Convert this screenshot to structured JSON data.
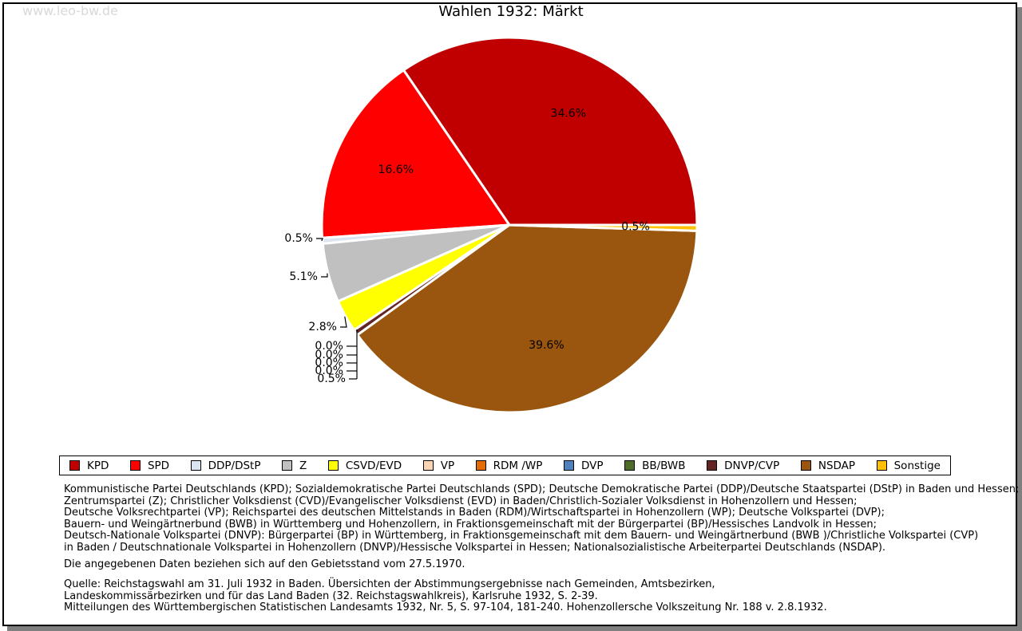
{
  "page": {
    "watermark": "www.leo-bw.de",
    "title": "Wahlen 1932: Märkt"
  },
  "chart_data": {
    "type": "pie",
    "title": "Wahlen 1932: Märkt",
    "legend_position": "bottom",
    "start_angle_deg": 0,
    "direction": "counterclockwise",
    "series": [
      {
        "name": "KPD",
        "value": 34.6,
        "color": "#c00000"
      },
      {
        "name": "SPD",
        "value": 16.6,
        "color": "#ff0000"
      },
      {
        "name": "DDP/DStP",
        "value": 0.5,
        "color": "#dbe5f1"
      },
      {
        "name": "Z",
        "value": 5.1,
        "color": "#c0c0c0"
      },
      {
        "name": "CSVD/EVD",
        "value": 2.8,
        "color": "#ffff00"
      },
      {
        "name": "VP",
        "value": 0.0,
        "color": "#fcd5b4"
      },
      {
        "name": "RDM /WP",
        "value": 0.0,
        "color": "#e36c09"
      },
      {
        "name": "DVP",
        "value": 0.0,
        "color": "#4f81bd"
      },
      {
        "name": "BB/BWB",
        "value": 0.0,
        "color": "#4f6b28"
      },
      {
        "name": "DNVP/CVP",
        "value": 0.5,
        "color": "#632423"
      },
      {
        "name": "NSDAP",
        "value": 39.6,
        "color": "#9a560e"
      },
      {
        "name": "Sonstige",
        "value": 0.5,
        "color": "#ffc000"
      }
    ],
    "percent_labels": [
      "34.6%",
      "16.6%",
      "0.5%",
      "5.1%",
      "2.8%",
      "0.0%",
      "0.0%",
      "0.0%",
      "0.0%",
      "0.5%",
      "39.6%",
      "0.5%"
    ]
  },
  "footer": {
    "party_note_lines": [
      "Kommunistische Partei Deutschlands (KPD); Sozialdemokratische Partei Deutschlands (SPD); Deutsche Demokratische Partei (DDP)/Deutsche Staatspartei (DStP) in Baden und Hessen;",
      "Zentrumspartei (Z); Christlicher Volksdienst (CVD)/Evangelischer Volksdienst (EVD) in Baden/Christlich-Sozialer Volksdienst in Hohenzollern und Hessen;",
      "Deutsche Volksrechtpartei (VP); Reichspartei des deutschen Mittelstands in Baden (RDM)/Wirtschaftspartei in Hohenzollern (WP); Deutsche Volkspartei (DVP);",
      "Bauern- und Weingärtnerbund (BWB) in Württemberg und Hohenzollern, in Fraktionsgemeinschaft mit der Bürgerpartei (BP)/Hessisches Landvolk in Hessen;",
      "Deutsch-Nationale Volkspartei (DNVP): Bürgerpartei (BP) in Württemberg, in Fraktionsgemeinschaft mit dem Bauern- und Weingärtnerbund (BWB )/Christliche Volkspartei (CVP)",
      "in Baden / Deutschnationale Volkspartei in Hohenzollern (DNVP)/Hessische Volkspartei in Hessen; Nationalsozialistische Arbeiterpartei Deutschlands (NSDAP)."
    ],
    "area_note": "Die angegebenen Daten beziehen sich auf den Gebietsstand vom 27.5.1970.",
    "source_lines": [
      "Quelle: Reichstagswahl am 31. Juli 1932 in Baden. Übersichten der Abstimmungsergebnisse nach Gemeinden, Amtsbezirken,",
      "Landeskommissärbezirken und für das Land Baden (32. Reichstagswahlkreis), Karlsruhe 1932, S. 2-39.",
      "Mitteilungen des Württembergischen Statistischen Landesamts 1932, Nr. 5, S. 97-104, 181-240. Hohenzollersche Volkszeitung Nr. 188 v. 2.8.1932."
    ]
  }
}
